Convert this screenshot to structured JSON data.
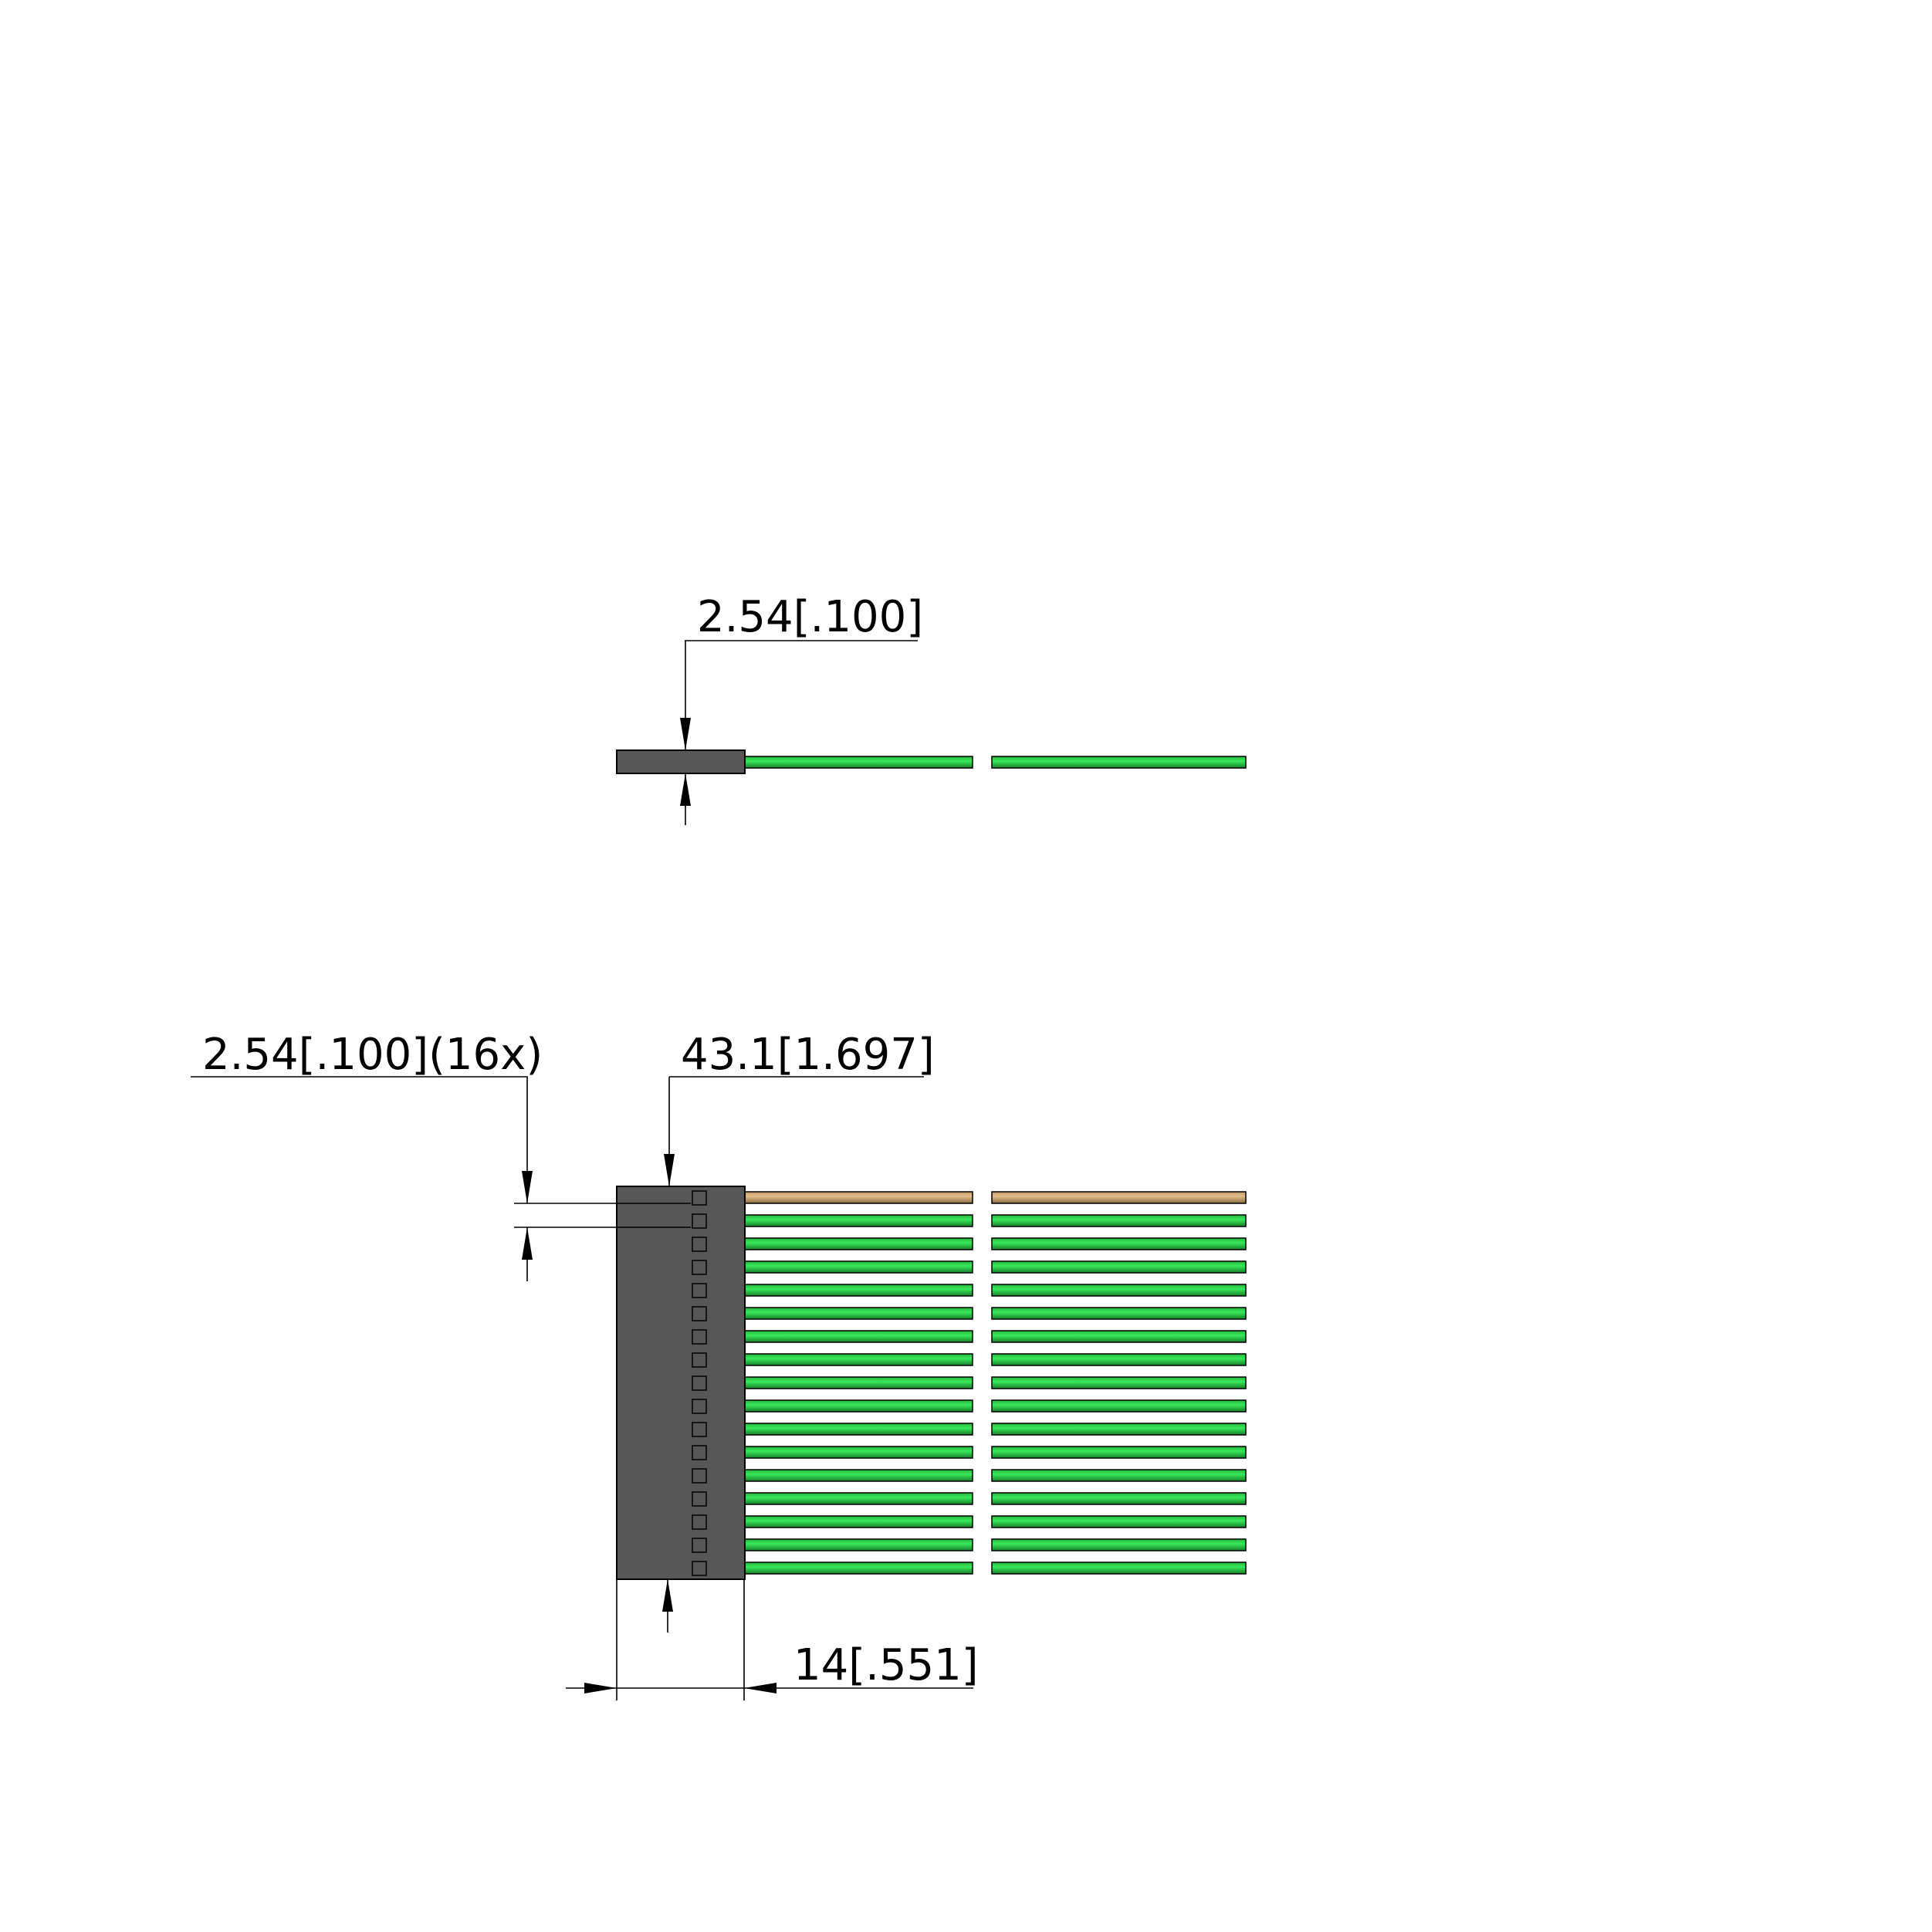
{
  "dimensions": {
    "side_pitch": "2.54[.100]",
    "pitch_count": "2.54[.100](16x)",
    "overall_height": "43.1[1.697]",
    "body_width": "14[.551]"
  },
  "connector": {
    "positions": 17,
    "wire_colors": [
      "tan",
      "green"
    ]
  },
  "colors": {
    "housing": "#575757",
    "wire_green": "#2fd94a",
    "wire_green_dark": "#1a8a2a",
    "wire_tan": "#d9ac78",
    "wire_tan_dark": "#8a6a40"
  }
}
